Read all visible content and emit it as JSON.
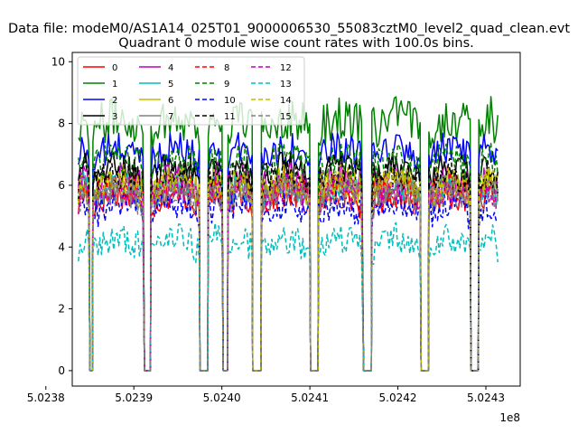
{
  "figure": {
    "suptitle": "Data file: modeM0/AS1A14_025T01_9000006530_55083cztM0_level2_quad_clean.evt",
    "offset_text": "1e8"
  },
  "chart_data": {
    "type": "line",
    "title": "Quadrant 0 module wise count rates with 100.0s bins.",
    "xlabel": "",
    "ylabel": "",
    "x_scale_label": "1e8",
    "xlim": [
      5.02383,
      5.024339
    ],
    "ylim": [
      -0.5,
      10.3
    ],
    "xticks": [
      5.0238,
      5.0239,
      5.024,
      5.0241,
      5.0242,
      5.0243
    ],
    "xtick_labels": [
      "5.0238",
      "5.0239",
      "5.0240",
      "5.0241",
      "5.0242",
      "5.0243"
    ],
    "yticks": [
      0,
      2,
      4,
      6,
      8,
      10
    ],
    "ytick_labels": [
      "0",
      "2",
      "4",
      "6",
      "8",
      "10"
    ],
    "grid": false,
    "legend_location": "upper-left",
    "legend_columns": 4,
    "gap_segments": [
      {
        "x_start": 5.023837,
        "x_end": 5.0238495
      },
      {
        "x_start": 5.0238535,
        "x_end": 5.0239115
      },
      {
        "x_start": 5.0239195,
        "x_end": 5.0239745
      },
      {
        "x_start": 5.0239845,
        "x_end": 5.024001
      },
      {
        "x_start": 5.024007,
        "x_end": 5.0240345
      },
      {
        "x_start": 5.024045,
        "x_end": 5.0241002
      },
      {
        "x_start": 5.0241098,
        "x_end": 5.0241605
      },
      {
        "x_start": 5.0241705,
        "x_end": 5.0242258
      },
      {
        "x_start": 5.0242352,
        "x_end": 5.0242825
      },
      {
        "x_start": 5.024292,
        "x_end": 5.0243148
      }
    ],
    "series": [
      {
        "name": "0",
        "color": "#ff0000",
        "style": "solid",
        "level": 5.3,
        "amplitude": 0.45
      },
      {
        "name": "1",
        "color": "#008000",
        "style": "solid",
        "level": 7.8,
        "amplitude": 0.7
      },
      {
        "name": "2",
        "color": "#0000ff",
        "style": "solid",
        "level": 6.8,
        "amplitude": 0.55
      },
      {
        "name": "3",
        "color": "#000000",
        "style": "solid",
        "level": 6.2,
        "amplitude": 0.5
      },
      {
        "name": "4",
        "color": "#bf00bf",
        "style": "solid",
        "level": 5.9,
        "amplitude": 0.5
      },
      {
        "name": "5",
        "color": "#00bfbf",
        "style": "solid",
        "level": 5.6,
        "amplitude": 0.45
      },
      {
        "name": "6",
        "color": "#bfbf00",
        "style": "solid",
        "level": 5.8,
        "amplitude": 0.5
      },
      {
        "name": "7",
        "color": "#808080",
        "style": "solid",
        "level": 5.5,
        "amplitude": 0.5
      },
      {
        "name": "8",
        "color": "#ff0000",
        "style": "dashed",
        "level": 5.6,
        "amplitude": 0.5
      },
      {
        "name": "9",
        "color": "#008000",
        "style": "dashed",
        "level": 6.5,
        "amplitude": 0.55
      },
      {
        "name": "10",
        "color": "#0000ff",
        "style": "dashed",
        "level": 5.0,
        "amplitude": 0.5
      },
      {
        "name": "11",
        "color": "#000000",
        "style": "dashed",
        "level": 6.0,
        "amplitude": 0.5
      },
      {
        "name": "12",
        "color": "#bf00bf",
        "style": "dashed",
        "level": 5.5,
        "amplitude": 0.5
      },
      {
        "name": "13",
        "color": "#00bfbf",
        "style": "dashed",
        "level": 3.9,
        "amplitude": 0.5
      },
      {
        "name": "14",
        "color": "#bfbf00",
        "style": "dashed",
        "level": 5.7,
        "amplitude": 0.5
      },
      {
        "name": "15",
        "color": "#808080",
        "style": "dashed",
        "level": 5.4,
        "amplitude": 0.5
      }
    ]
  }
}
